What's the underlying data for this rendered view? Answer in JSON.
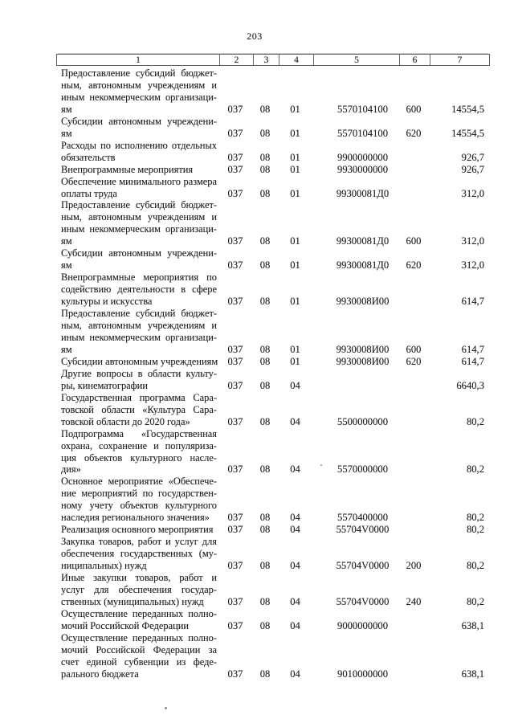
{
  "page": {
    "number": "203"
  },
  "table": {
    "header_cols": [
      "1",
      "2",
      "3",
      "4",
      "5",
      "6",
      "7"
    ],
    "rows": [
      {
        "lines": [
          "Предоставление субсидий бюджет-",
          "ным, автономным учреждениям и",
          "иным некоммерческим организаци-",
          "ям"
        ],
        "c2": "037",
        "c3": "08",
        "c4": "01",
        "c5": "5570104100",
        "c6": "600",
        "c7": "14554,5"
      },
      {
        "lines": [
          "Субсидии автономным учреждени-",
          "ям"
        ],
        "c2": "037",
        "c3": "08",
        "c4": "01",
        "c5": "5570104100",
        "c6": "620",
        "c7": "14554,5"
      },
      {
        "lines": [
          "Расходы по исполнению отдельных",
          "обязательств"
        ],
        "c2": "037",
        "c3": "08",
        "c4": "01",
        "c5": "9900000000",
        "c6": "",
        "c7": "926,7"
      },
      {
        "lines": [
          "Внепрограммные мероприятия"
        ],
        "c2": "037",
        "c3": "08",
        "c4": "01",
        "c5": "9930000000",
        "c6": "",
        "c7": "926,7"
      },
      {
        "lines": [
          "Обеспечение минимального размера",
          "оплаты труда"
        ],
        "c2": "037",
        "c3": "08",
        "c4": "01",
        "c5": "99300081Д0",
        "c6": "",
        "c7": "312,0"
      },
      {
        "lines": [
          "Предоставление субсидий бюджет-",
          "ным, автономным учреждениям и",
          "иным некоммерческим организаци-",
          "ям"
        ],
        "c2": "037",
        "c3": "08",
        "c4": "01",
        "c5": "99300081Д0",
        "c6": "600",
        "c7": "312,0"
      },
      {
        "lines": [
          "Субсидии автономным учреждени-",
          "ям"
        ],
        "c2": "037",
        "c3": "08",
        "c4": "01",
        "c5": "99300081Д0",
        "c6": "620",
        "c7": "312,0"
      },
      {
        "lines": [
          "Внепрограммные мероприятия по",
          "содействию деятельности в сфере",
          "культуры и искусства"
        ],
        "c2": "037",
        "c3": "08",
        "c4": "01",
        "c5": "9930008И00",
        "c6": "",
        "c7": "614,7"
      },
      {
        "lines": [
          "Предоставление субсидий бюджет-",
          "ным, автономным учреждениям и",
          "иным некоммерческим организаци-",
          "ям"
        ],
        "c2": "037",
        "c3": "08",
        "c4": "01",
        "c5": "9930008И00",
        "c6": "600",
        "c7": "614,7"
      },
      {
        "lines": [
          "Субсидии автономным учреждениям"
        ],
        "c2": "037",
        "c3": "08",
        "c4": "01",
        "c5": "9930008И00",
        "c6": "620",
        "c7": "614,7"
      },
      {
        "lines": [
          "Другие вопросы в области культу-",
          "ры, кинематографии"
        ],
        "c2": "037",
        "c3": "08",
        "c4": "04",
        "c5": "",
        "c6": "",
        "c7": "6640,3"
      },
      {
        "lines": [
          "Государственная программа Сара-",
          "товской области «Культура Сара-",
          "товской области до 2020 года»"
        ],
        "c2": "037",
        "c3": "08",
        "c4": "04",
        "c5": "5500000000",
        "c6": "",
        "c7": "80,2"
      },
      {
        "lines": [
          "Подпрограмма «Государственная",
          "охрана, сохранение и популяриза-",
          "ция объектов культурного насле-",
          "дия»"
        ],
        "c2": "037",
        "c3": "08",
        "c4": "04",
        "c5": "5570000000",
        "c6": "",
        "c7": "80,2"
      },
      {
        "lines": [
          "Основное мероприятие «Обеспече-",
          "ние мероприятий по государствен-",
          "ному учету объектов культурного",
          "наследия регионального значения»"
        ],
        "c2": "037",
        "c3": "08",
        "c4": "04",
        "c5": "5570400000",
        "c6": "",
        "c7": "80,2"
      },
      {
        "lines": [
          "Реализация основного мероприятия"
        ],
        "c2": "037",
        "c3": "08",
        "c4": "04",
        "c5": "55704V0000",
        "c6": "",
        "c7": "80,2"
      },
      {
        "lines": [
          "Закупка товаров, работ и услуг для",
          "обеспечения государственных (му-",
          "ниципальных) нужд"
        ],
        "c2": "037",
        "c3": "08",
        "c4": "04",
        "c5": "55704V0000",
        "c6": "200",
        "c7": "80,2"
      },
      {
        "lines": [
          "Иные закупки товаров, работ и",
          "услуг для обеспечения государ-",
          "ственных (муниципальных) нужд"
        ],
        "c2": "037",
        "c3": "08",
        "c4": "04",
        "c5": "55704V0000",
        "c6": "240",
        "c7": "80,2"
      },
      {
        "lines": [
          "Осуществление переданных полно-",
          "мочий Российской Федерации"
        ],
        "c2": "037",
        "c3": "08",
        "c4": "04",
        "c5": "9000000000",
        "c6": "",
        "c7": "638,1"
      },
      {
        "lines": [
          "Осуществление переданных полно-",
          "мочий Российской Федерации за",
          "счет единой субвенции из феде-",
          "рального бюджета"
        ],
        "c2": "037",
        "c3": "08",
        "c4": "04",
        "c5": "9010000000",
        "c6": "",
        "c7": "638,1"
      }
    ]
  }
}
